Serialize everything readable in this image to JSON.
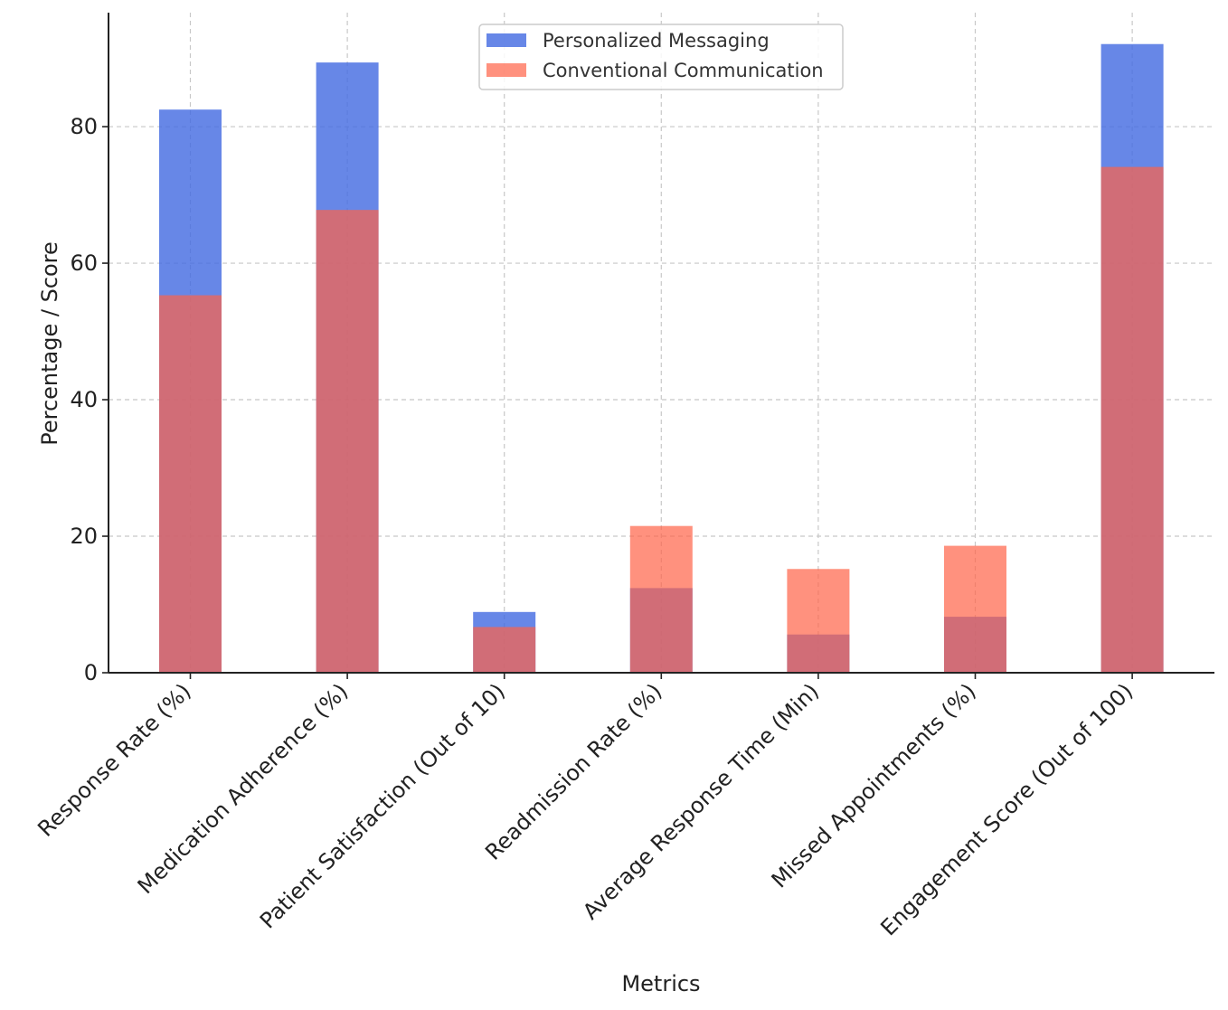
{
  "chart_data": {
    "type": "bar",
    "title": "",
    "xlabel": "Metrics",
    "ylabel": "Percentage / Score",
    "ylim": [
      0,
      96.7
    ],
    "yticks": [
      0,
      20,
      40,
      60,
      80
    ],
    "grid": true,
    "legend_position": "top-center",
    "categories": [
      "Response Rate (%)",
      "Medication Adherence (%)",
      "Patient Satisfaction (Out of 10)",
      "Readmission Rate (%)",
      "Average Response Time (Min)",
      "Missed Appointments (%)",
      "Engagement Score (Out of 100)"
    ],
    "series": [
      {
        "name": "Personalized Messaging",
        "color": "#4169e1",
        "opacity": 0.8,
        "values": [
          82.5,
          89.4,
          8.9,
          12.4,
          5.6,
          8.2,
          92.1
        ]
      },
      {
        "name": "Conventional Communication",
        "color": "#ff6347",
        "opacity": 0.7,
        "values": [
          55.3,
          67.8,
          6.7,
          21.5,
          15.2,
          18.6,
          74.1
        ]
      }
    ]
  }
}
